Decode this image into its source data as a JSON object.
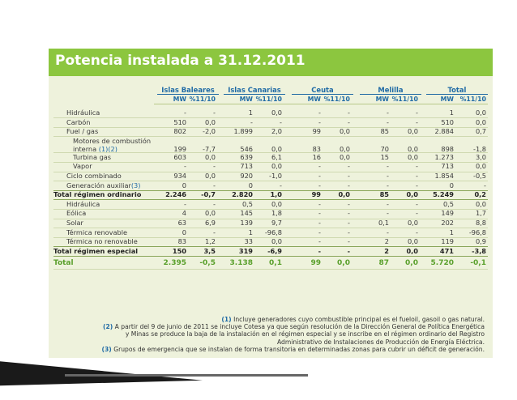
{
  "title": "Potencia instalada a 31.12.2011",
  "groups": [
    {
      "name": "Islas Baleares"
    },
    {
      "name": "Islas Canarias"
    },
    {
      "name": "Ceuta"
    },
    {
      "name": "Melilla"
    },
    {
      "name": "Total"
    }
  ],
  "sub_headers": [
    "MW",
    "%11/10"
  ],
  "rows": [
    {
      "label": "Hidráulica",
      "indent": 1,
      "style": "normal",
      "values": [
        "-",
        "-",
        "1",
        "0,0",
        "-",
        "-",
        "-",
        "-",
        "1",
        "0,0"
      ]
    },
    {
      "label": "Carbón",
      "indent": 1,
      "style": "normal",
      "values": [
        "510",
        "0,0",
        "-",
        "-",
        "-",
        "-",
        "-",
        "-",
        "510",
        "0,0"
      ]
    },
    {
      "label": "Fuel / gas",
      "indent": 1,
      "style": "normal",
      "values": [
        "802",
        "-2,0",
        "1.899",
        "2,0",
        "99",
        "0,0",
        "85",
        "0,0",
        "2.884",
        "0,7"
      ]
    },
    {
      "label": "Motores de combustión",
      "label2": "interna",
      "ref": "(1)(2)",
      "indent": 2,
      "style": "normal",
      "values": [
        "199",
        "-7,7",
        "546",
        "0,0",
        "83",
        "0,0",
        "70",
        "0,0",
        "898",
        "-1,8"
      ]
    },
    {
      "label": "Turbina gas",
      "indent": 2,
      "style": "normal",
      "values": [
        "603",
        "0,0",
        "639",
        "6,1",
        "16",
        "0,0",
        "15",
        "0,0",
        "1.273",
        "3,0"
      ]
    },
    {
      "label": "Vapor",
      "indent": 2,
      "style": "normal",
      "values": [
        "-",
        "-",
        "713",
        "0,0",
        "-",
        "-",
        "-",
        "-",
        "713",
        "0,0"
      ]
    },
    {
      "label": "Ciclo combinado",
      "indent": 1,
      "style": "normal",
      "values": [
        "934",
        "0,0",
        "920",
        "-1,0",
        "-",
        "-",
        "-",
        "-",
        "1.854",
        "-0,5"
      ]
    },
    {
      "label": "Generación auxiliar",
      "ref": "(3)",
      "indent": 1,
      "style": "normal",
      "values": [
        "0",
        "-",
        "0",
        "-",
        "-",
        "-",
        "-",
        "-",
        "0",
        "-"
      ]
    },
    {
      "label": "Total régimen ordinario",
      "indent": 0,
      "style": "bold",
      "values": [
        "2.246",
        "-0,7",
        "2.820",
        "1,0",
        "99",
        "0,0",
        "85",
        "0,0",
        "5.249",
        "0,2"
      ]
    },
    {
      "label": "Hidráulica",
      "indent": 1,
      "style": "normal",
      "values": [
        "-",
        "-",
        "0,5",
        "0,0",
        "-",
        "-",
        "-",
        "-",
        "0,5",
        "0,0"
      ]
    },
    {
      "label": "Eólica",
      "indent": 1,
      "style": "normal",
      "values": [
        "4",
        "0,0",
        "145",
        "1,8",
        "-",
        "-",
        "-",
        "-",
        "149",
        "1,7"
      ]
    },
    {
      "label": "Solar",
      "indent": 1,
      "style": "normal",
      "values": [
        "63",
        "6,9",
        "139",
        "9,7",
        "-",
        "-",
        "0,1",
        "0,0",
        "202",
        "8,8"
      ]
    },
    {
      "label": "Térmica renovable",
      "indent": 1,
      "style": "normal",
      "values": [
        "0",
        "-",
        "1",
        "-96,8",
        "-",
        "-",
        "-",
        "-",
        "1",
        "-96,8"
      ]
    },
    {
      "label": "Térmica no renovable",
      "indent": 1,
      "style": "normal",
      "values": [
        "83",
        "1,2",
        "33",
        "0,0",
        "-",
        "-",
        "2",
        "0,0",
        "119",
        "0,9"
      ]
    },
    {
      "label": "Total régimen especial",
      "indent": 0,
      "style": "bold",
      "values": [
        "150",
        "3,5",
        "319",
        "-6,9",
        "-",
        "-",
        "2",
        "0,0",
        "471",
        "-3,8"
      ]
    },
    {
      "label": "Total",
      "indent": 0,
      "style": "total",
      "values": [
        "2.395",
        "-0,5",
        "3.138",
        "0,1",
        "99",
        "0,0",
        "87",
        "0,0",
        "5.720",
        "-0,1"
      ]
    }
  ],
  "notes": [
    {
      "ref": "(1)",
      "lines": [
        "Incluye generadores cuyo combustible principal es el fueloil, gasoil o gas natural."
      ]
    },
    {
      "ref": "(2)",
      "lines": [
        "A partir del 9 de junio de 2011 se incluye Cotesa ya que según resolución de la Dirección General de Política Energética",
        "y Minas se produce la baja de la instalación en el régimen especial y se inscribe en el régimen ordinario del Registro",
        "Administrativo de Instalaciones de Producción de Energía Eléctrica."
      ]
    },
    {
      "ref": "(3)",
      "lines": [
        "Grupos de emergencia que se instalan de forma transitoria en determinadas zonas para cubrir un déficit de generación."
      ]
    }
  ]
}
